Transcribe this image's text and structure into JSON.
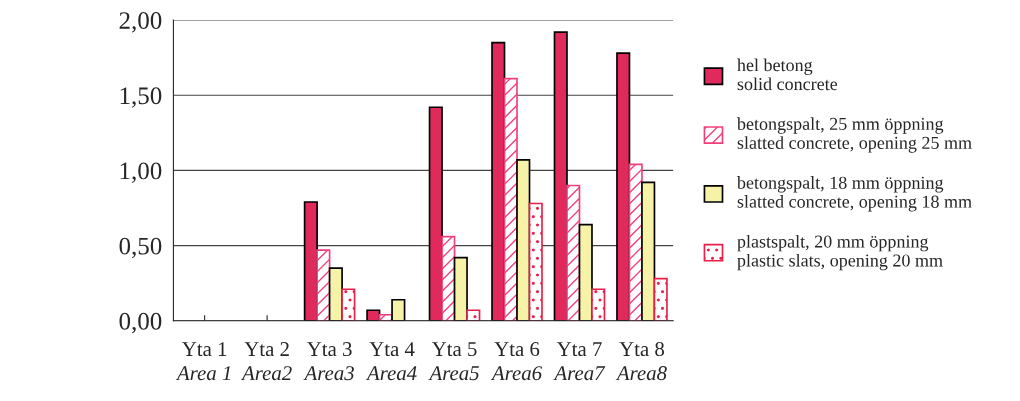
{
  "chart_data": {
    "type": "bar",
    "categories": [
      "Yta 1\nArea 1",
      "Yta 2\nArea2",
      "Yta 3\nArea3",
      "Yta 4\nArea4",
      "Yta 5\nArea5",
      "Yta 6\nArea6",
      "Yta 7\nArea7",
      "Yta 8\nArea8"
    ],
    "series": [
      {
        "name": "hel betong\nsolid concrete",
        "color": "#e02a5c",
        "values": [
          null,
          null,
          0.79,
          0.07,
          1.42,
          1.85,
          1.92,
          1.78
        ]
      },
      {
        "name": "betongspalt, 25 mm öppning\nslatted concrete, opening 25 mm",
        "color": "#f0407a",
        "values": [
          null,
          null,
          0.47,
          0.04,
          0.56,
          1.61,
          0.9,
          1.04
        ]
      },
      {
        "name": "betongspalt, 18 mm öppning\nslatted concrete, opening 18 mm",
        "color": "#f6f2a8",
        "values": [
          null,
          null,
          0.35,
          0.14,
          0.42,
          1.07,
          0.64,
          0.92
        ]
      },
      {
        "name": "plastspalt, 20 mm öppning\nplastic slats, opening 20 mm",
        "color": "#e8204a",
        "values": [
          null,
          null,
          0.21,
          null,
          0.07,
          0.78,
          0.21,
          0.28
        ]
      }
    ],
    "ylim": [
      0,
      2
    ],
    "yticks": [
      {
        "value": 0,
        "label": "0,00"
      },
      {
        "value": 0.5,
        "label": "0,50"
      },
      {
        "value": 1,
        "label": "1,00"
      },
      {
        "value": 1.5,
        "label": "1,50"
      },
      {
        "value": 2,
        "label": "2,00"
      }
    ],
    "grid": "y",
    "legend": "right"
  }
}
